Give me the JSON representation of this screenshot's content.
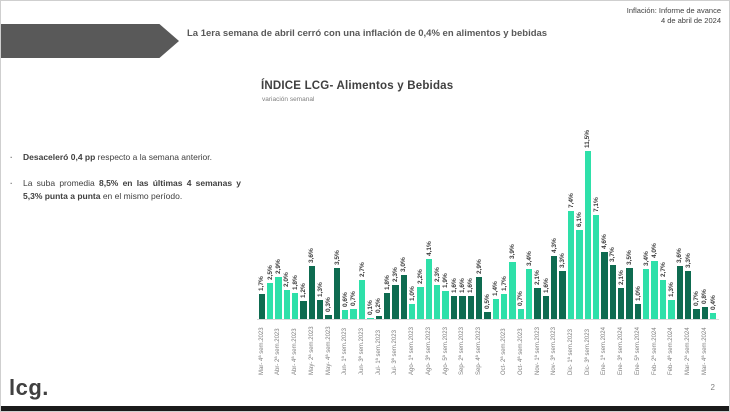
{
  "header": {
    "note_line1": "Inflación: Informe de avance",
    "note_line2": "4 de abril de 2024",
    "headline": "La 1era semana de abril cerró con una inflación de 0,4% en alimentos y bebidas"
  },
  "sidebar": {
    "bullets": [
      {
        "segments": [
          {
            "text": "Desaceleró 0,4 pp",
            "bold": true
          },
          {
            "text": " respecto a la semana anterior.",
            "bold": false
          }
        ]
      },
      {
        "segments": [
          {
            "text": "La suba promedia ",
            "bold": false
          },
          {
            "text": "8,5% en las últimas 4 semanas y 5,3% punta a punta",
            "bold": true
          },
          {
            "text": " en el mismo período.",
            "bold": false
          }
        ]
      }
    ]
  },
  "footer": {
    "logo": "lcg.",
    "page": "2"
  },
  "chart_data": {
    "type": "bar",
    "title": "ÍNDICE LCG- Alimentos y Bebidas",
    "subtitle": "variación semanal",
    "unit": "%",
    "ylim": [
      0,
      12
    ],
    "grid": false,
    "legend": "none",
    "colors": {
      "dark": "#0E6B50",
      "light": "#2EE0A9"
    },
    "bars": [
      {
        "label": "Mar- 4ª sem.2023",
        "value": 1.7,
        "display": "1,7%",
        "color": "dark"
      },
      {
        "label": "",
        "value": 2.5,
        "display": "2,5%",
        "color": "light"
      },
      {
        "label": "Abr- 2ª sem.2023",
        "value": 2.9,
        "display": "2,9%",
        "color": "light"
      },
      {
        "label": "",
        "value": 2.0,
        "display": "2,0%",
        "color": "light"
      },
      {
        "label": "Abr- 4ª sem.2023",
        "value": 1.8,
        "display": "1,8%",
        "color": "light"
      },
      {
        "label": "",
        "value": 1.2,
        "display": "1,2%",
        "color": "dark"
      },
      {
        "label": "May- 2ª sem.2023",
        "value": 3.6,
        "display": "3,6%",
        "color": "dark"
      },
      {
        "label": "",
        "value": 1.3,
        "display": "1,3%",
        "color": "dark"
      },
      {
        "label": "May- 4ª sem.2023",
        "value": 0.3,
        "display": "0,3%",
        "color": "dark"
      },
      {
        "label": "",
        "value": 3.5,
        "display": "3,5%",
        "color": "dark"
      },
      {
        "label": "Jun- 1ª sem.2023",
        "value": 0.6,
        "display": "0,6%",
        "color": "light"
      },
      {
        "label": "",
        "value": 0.7,
        "display": "0,7%",
        "color": "light"
      },
      {
        "label": "Jun- 3ª sem.2023",
        "value": 2.7,
        "display": "2,7%",
        "color": "light"
      },
      {
        "label": "",
        "value": 0.1,
        "display": "0,1%",
        "color": "light"
      },
      {
        "label": "Jul- 1ª sem.2023",
        "value": 0.2,
        "display": "0,2%",
        "color": "dark"
      },
      {
        "label": "",
        "value": 1.8,
        "display": "1,8%",
        "color": "dark"
      },
      {
        "label": "Jul- 3ª sem.2023",
        "value": 2.3,
        "display": "2,3%",
        "color": "dark"
      },
      {
        "label": "",
        "value": 3.0,
        "display": "3,0%",
        "color": "dark"
      },
      {
        "label": "Ago- 1ª sem.2023",
        "value": 1.0,
        "display": "1,0%",
        "color": "light"
      },
      {
        "label": "",
        "value": 2.2,
        "display": "2,2%",
        "color": "light"
      },
      {
        "label": "Ago- 3ª sem.2023",
        "value": 4.1,
        "display": "4,1%",
        "color": "light"
      },
      {
        "label": "",
        "value": 2.3,
        "display": "2,3%",
        "color": "light"
      },
      {
        "label": "Ago- 5ª sem.2023",
        "value": 1.9,
        "display": "1,9%",
        "color": "light"
      },
      {
        "label": "",
        "value": 1.6,
        "display": "1,6%",
        "color": "dark"
      },
      {
        "label": "Sep- 2ª sem.2023",
        "value": 1.6,
        "display": "1,6%",
        "color": "dark"
      },
      {
        "label": "",
        "value": 1.6,
        "display": "1,6%",
        "color": "dark"
      },
      {
        "label": "Sep- 4ª sem.2023",
        "value": 2.9,
        "display": "2,9%",
        "color": "dark"
      },
      {
        "label": "",
        "value": 0.5,
        "display": "0,5%",
        "color": "dark"
      },
      {
        "label": "",
        "value": 1.4,
        "display": "1,4%",
        "color": "light"
      },
      {
        "label": "Oct- 2ª sem.2023",
        "value": 1.7,
        "display": "1,7%",
        "color": "light"
      },
      {
        "label": "",
        "value": 3.9,
        "display": "3,9%",
        "color": "light"
      },
      {
        "label": "Oct- 4ª sem.2023",
        "value": 0.7,
        "display": "0,7%",
        "color": "light"
      },
      {
        "label": "",
        "value": 3.4,
        "display": "3,4%",
        "color": "light"
      },
      {
        "label": "Nov- 1ª sem.2023",
        "value": 2.1,
        "display": "2,1%",
        "color": "dark"
      },
      {
        "label": "",
        "value": 1.6,
        "display": "1,6%",
        "color": "dark"
      },
      {
        "label": "Nov- 3ª sem.2023",
        "value": 4.3,
        "display": "4,3%",
        "color": "dark"
      },
      {
        "label": "",
        "value": 3.3,
        "display": "3,3%",
        "color": "dark"
      },
      {
        "label": "Dic- 1ª sem.2023",
        "value": 7.4,
        "display": "7,4%",
        "color": "light"
      },
      {
        "label": "",
        "value": 6.1,
        "display": "6,1%",
        "color": "light"
      },
      {
        "label": "Dic- 3ª sem.2023",
        "value": 11.5,
        "display": "11,5%",
        "color": "light"
      },
      {
        "label": "",
        "value": 7.1,
        "display": "7,1%",
        "color": "light"
      },
      {
        "label": "Ene- 1ª sem.2024",
        "value": 4.6,
        "display": "4,6%",
        "color": "dark"
      },
      {
        "label": "",
        "value": 3.7,
        "display": "3,7%",
        "color": "dark"
      },
      {
        "label": "Ene- 3ª sem.2024",
        "value": 2.1,
        "display": "2,1%",
        "color": "dark"
      },
      {
        "label": "",
        "value": 3.5,
        "display": "3,5%",
        "color": "dark"
      },
      {
        "label": "Ene- 5ª sem.2024",
        "value": 1.0,
        "display": "1,0%",
        "color": "dark"
      },
      {
        "label": "",
        "value": 3.4,
        "display": "3,4%",
        "color": "light"
      },
      {
        "label": "Feb- 2ª sem.2024",
        "value": 4.0,
        "display": "4,0%",
        "color": "light"
      },
      {
        "label": "",
        "value": 2.7,
        "display": "2,7%",
        "color": "light"
      },
      {
        "label": "Feb- 4ª sem.2024",
        "value": 1.3,
        "display": "1,3%",
        "color": "light"
      },
      {
        "label": "",
        "value": 3.6,
        "display": "3,6%",
        "color": "dark"
      },
      {
        "label": "Mar- 2ª sem.2024",
        "value": 3.3,
        "display": "3,3%",
        "color": "dark"
      },
      {
        "label": "",
        "value": 0.7,
        "display": "0,7%",
        "color": "dark"
      },
      {
        "label": "Mar- 4ª sem.2024",
        "value": 0.8,
        "display": "0,8%",
        "color": "dark"
      },
      {
        "label": "",
        "value": 0.4,
        "display": "0,4%",
        "color": "light"
      }
    ]
  }
}
